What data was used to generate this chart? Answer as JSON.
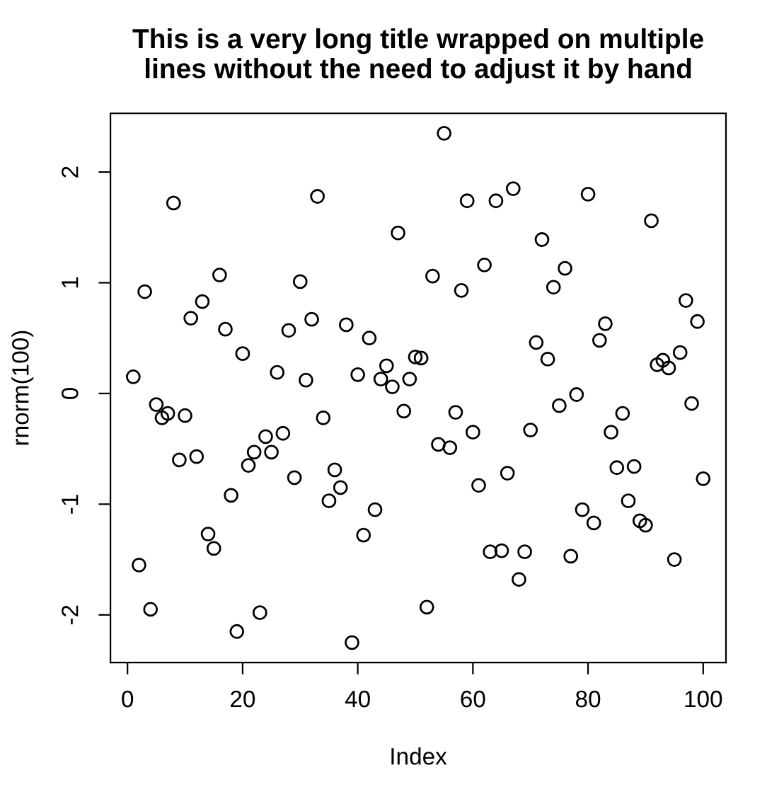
{
  "chart_data": {
    "type": "scatter",
    "title": "This is a very long title wrapped on multiple\nlines without the need to adjust it by hand",
    "xlabel": "Index",
    "ylabel": "rnorm(100)",
    "x": [
      1,
      2,
      3,
      4,
      5,
      6,
      7,
      8,
      9,
      10,
      11,
      12,
      13,
      14,
      15,
      16,
      17,
      18,
      19,
      20,
      21,
      22,
      23,
      24,
      25,
      26,
      27,
      28,
      29,
      30,
      31,
      32,
      33,
      34,
      35,
      36,
      37,
      38,
      39,
      40,
      41,
      42,
      43,
      44,
      45,
      46,
      47,
      48,
      49,
      50,
      51,
      52,
      53,
      54,
      55,
      56,
      57,
      58,
      59,
      60,
      61,
      62,
      63,
      64,
      65,
      66,
      67,
      68,
      69,
      70,
      71,
      72,
      73,
      74,
      75,
      76,
      77,
      78,
      79,
      80,
      81,
      82,
      83,
      84,
      85,
      86,
      87,
      88,
      89,
      90,
      91,
      92,
      93,
      94,
      95,
      96,
      97,
      98,
      99,
      100
    ],
    "values": [
      0.15,
      -1.55,
      0.92,
      -1.95,
      -0.1,
      -0.22,
      -0.18,
      1.72,
      -0.6,
      -0.2,
      0.68,
      -0.57,
      0.83,
      -1.27,
      -1.4,
      1.07,
      0.58,
      -0.92,
      -2.15,
      0.36,
      -0.65,
      -0.53,
      -1.98,
      -0.39,
      -0.53,
      0.19,
      -0.36,
      0.57,
      -0.76,
      1.01,
      0.12,
      0.67,
      1.78,
      -0.22,
      -0.97,
      -0.69,
      -0.85,
      0.62,
      -2.25,
      0.17,
      -1.28,
      0.5,
      -1.05,
      0.13,
      0.25,
      0.06,
      1.45,
      -0.16,
      0.13,
      0.33,
      0.32,
      -1.93,
      1.06,
      -0.46,
      2.35,
      -0.49,
      -0.17,
      0.93,
      1.74,
      -0.35,
      -0.83,
      1.16,
      -1.43,
      1.74,
      -1.42,
      -0.72,
      1.85,
      -1.68,
      -1.43,
      -0.33,
      0.46,
      1.39,
      0.31,
      0.96,
      -0.11,
      1.13,
      -1.47,
      -0.01,
      -1.05,
      1.8,
      -1.17,
      0.48,
      0.63,
      -0.35,
      -0.67,
      -0.18,
      -0.97,
      -0.66,
      -1.15,
      -1.19,
      1.56,
      0.26,
      0.3,
      0.23,
      -1.5,
      0.37,
      0.84,
      -0.09,
      0.65,
      -0.77
    ],
    "color": "#000000",
    "marker": "circle",
    "xlim": [
      -2.96,
      103.96
    ],
    "ylim": [
      -2.43,
      2.53
    ],
    "xticks": [
      0,
      20,
      40,
      60,
      80,
      100
    ],
    "yticks": [
      -2,
      -1,
      0,
      1,
      2
    ],
    "grid": false
  }
}
